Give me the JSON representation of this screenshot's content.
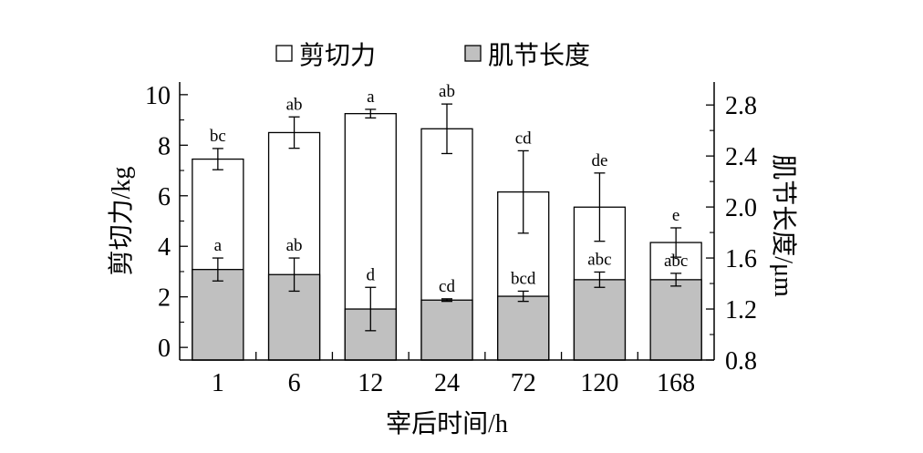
{
  "chart_data": {
    "type": "bar",
    "categories": [
      "1",
      "6",
      "12",
      "24",
      "72",
      "120",
      "168"
    ],
    "xlabel": "宰后时间/h",
    "series": [
      {
        "name": "剪切力",
        "axis": "left",
        "values": [
          7.45,
          8.5,
          9.25,
          8.65,
          6.15,
          5.55,
          4.15
        ],
        "errors": [
          0.42,
          0.62,
          0.17,
          0.98,
          1.63,
          1.35,
          0.58
        ],
        "labels": [
          "bc",
          "ab",
          "a",
          "ab",
          "cd",
          "de",
          "e"
        ],
        "color": "#ffffff"
      },
      {
        "name": "肌节长度",
        "axis": "right",
        "values": [
          1.51,
          1.47,
          1.2,
          1.27,
          1.3,
          1.43,
          1.43
        ],
        "errors": [
          0.09,
          0.13,
          0.17,
          0.01,
          0.04,
          0.06,
          0.05
        ],
        "labels": [
          "a",
          "ab",
          "d",
          "cd",
          "bcd",
          "abc",
          "abc"
        ],
        "color": "#c0c0c0"
      }
    ],
    "y_left": {
      "label": "剪切力/kg",
      "lim": [
        -0.5,
        10.5
      ],
      "ticks": [
        0,
        2,
        4,
        6,
        8,
        10
      ],
      "tick_labels": [
        "0",
        "2",
        "4",
        "6",
        "8",
        "10"
      ]
    },
    "y_right": {
      "label": "肌节长度/μm",
      "lim": [
        0.8,
        2.98
      ],
      "ticks": [
        0.8,
        1.2,
        1.6,
        2.0,
        2.4,
        2.8
      ],
      "tick_labels": [
        "0.8",
        "1.2",
        "1.6",
        "2.0",
        "2.4",
        "2.8"
      ]
    },
    "legend": {
      "position": "top",
      "items": [
        {
          "label": "剪切力",
          "color": "#ffffff"
        },
        {
          "label": "肌节长度",
          "color": "#c0c0c0"
        }
      ]
    },
    "grid": false
  }
}
